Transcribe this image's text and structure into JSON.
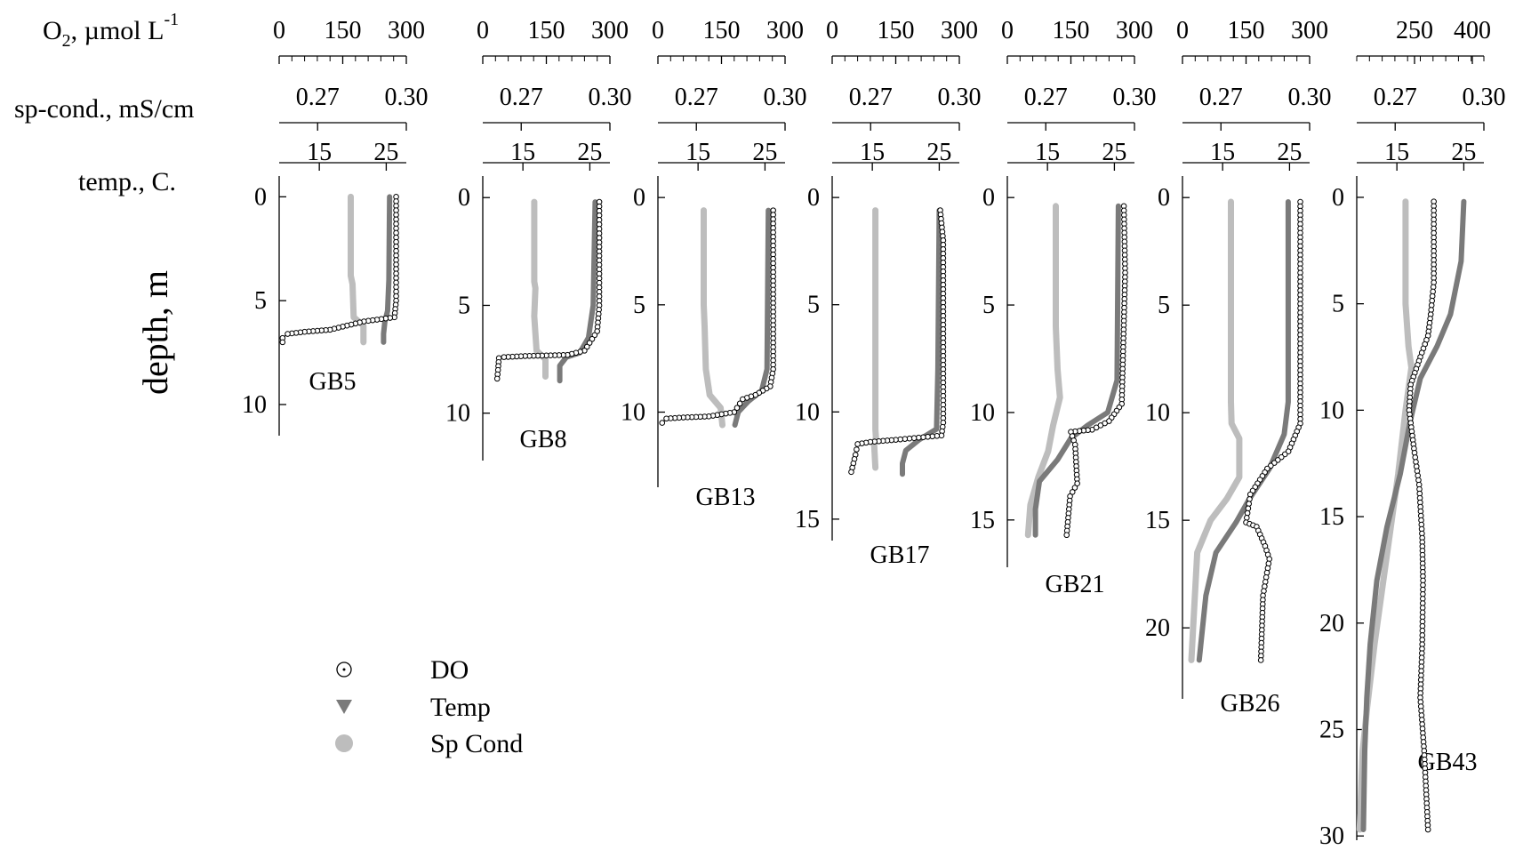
{
  "chart_data": {
    "type": "scatter",
    "row_labels": {
      "o2_prefix": "O",
      "o2_sub": "2",
      "o2_main": ", µmol L",
      "o2_sup": "-1",
      "cond": "sp-cond., mS/cm",
      "temp": "temp., C.",
      "depth": "depth, m"
    },
    "legend": [
      {
        "name": "DO",
        "marker": "open-circle",
        "color": "#000000"
      },
      {
        "name": "Temp",
        "marker": "triangle-down",
        "color": "#7a7a7a"
      },
      {
        "name": "Sp Cond",
        "marker": "filled-circle",
        "color": "#bdbdbd"
      }
    ],
    "colors": {
      "do": "#000000",
      "temp": "#7a7a7a",
      "cond": "#bdbdbd"
    },
    "panels": [
      {
        "station": "GB5",
        "o2_ticks": [
          "0",
          "150",
          "300"
        ],
        "o2_range": [
          0,
          300
        ],
        "cond_ticks": [
          "0.27",
          "0.30"
        ],
        "cond_range": [
          0.257,
          0.3
        ],
        "temp_ticks": [
          "15",
          "25"
        ],
        "temp_range": [
          9,
          28
        ],
        "depth_ticks": [
          "0",
          "5",
          "10"
        ],
        "depth_range": [
          -1,
          11.5
        ],
        "do": [
          [
            276,
            0
          ],
          [
            276,
            5
          ],
          [
            272,
            5.8
          ],
          [
            200,
            6
          ],
          [
            160,
            6.2
          ],
          [
            120,
            6.4
          ],
          [
            60,
            6.5
          ],
          [
            20,
            6.6
          ],
          [
            8,
            6.8
          ],
          [
            8,
            7.0
          ]
        ],
        "temp": [
          [
            25.5,
            0
          ],
          [
            25.4,
            4
          ],
          [
            25.2,
            5.5
          ],
          [
            24.8,
            6.0
          ],
          [
            24.6,
            6.6
          ],
          [
            24.6,
            7.0
          ]
        ],
        "cond": [
          [
            0.2812,
            0
          ],
          [
            0.2812,
            3.8
          ],
          [
            0.2818,
            4.2
          ],
          [
            0.2822,
            5.8
          ],
          [
            0.2855,
            6.2
          ],
          [
            0.2855,
            7.0
          ]
        ]
      },
      {
        "station": "GB8",
        "o2_ticks": [
          "0",
          "150",
          "300"
        ],
        "o2_range": [
          0,
          300
        ],
        "cond_ticks": [
          "0.27",
          "0.30"
        ],
        "cond_range": [
          0.257,
          0.3
        ],
        "temp_ticks": [
          "15",
          "25"
        ],
        "temp_range": [
          9,
          28
        ],
        "depth_ticks": [
          "0",
          "5",
          "10"
        ],
        "depth_range": [
          -1,
          12.2
        ],
        "do": [
          [
            275,
            0.2
          ],
          [
            275,
            5
          ],
          [
            270,
            6.2
          ],
          [
            240,
            7.1
          ],
          [
            200,
            7.3
          ],
          [
            100,
            7.35
          ],
          [
            50,
            7.4
          ],
          [
            38,
            7.45
          ],
          [
            36,
            8.0
          ],
          [
            34,
            8.4
          ]
        ],
        "temp": [
          [
            25.8,
            0.2
          ],
          [
            25.5,
            5
          ],
          [
            24.8,
            6.5
          ],
          [
            23.5,
            7.2
          ],
          [
            21.5,
            7.4
          ],
          [
            20.5,
            7.8
          ],
          [
            20.5,
            8.5
          ]
        ],
        "cond": [
          [
            0.2744,
            0.2
          ],
          [
            0.2744,
            3.9
          ],
          [
            0.2748,
            4.2
          ],
          [
            0.2744,
            5.5
          ],
          [
            0.2752,
            7.1
          ],
          [
            0.2782,
            7.5
          ],
          [
            0.2782,
            8.3
          ]
        ]
      },
      {
        "station": "GB13",
        "o2_ticks": [
          "0",
          "150",
          "300"
        ],
        "o2_range": [
          0,
          300
        ],
        "cond_ticks": [
          "0.27",
          "0.30"
        ],
        "cond_range": [
          0.257,
          0.3
        ],
        "temp_ticks": [
          "15",
          "25"
        ],
        "temp_range": [
          9,
          28
        ],
        "depth_ticks": [
          "0",
          "5",
          "10"
        ],
        "depth_range": [
          -1,
          13.5
        ],
        "do": [
          [
            272,
            0.6
          ],
          [
            272,
            8
          ],
          [
            265,
            8.8
          ],
          [
            230,
            9.2
          ],
          [
            200,
            9.4
          ],
          [
            180,
            10.0
          ],
          [
            120,
            10.2
          ],
          [
            60,
            10.25
          ],
          [
            20,
            10.3
          ],
          [
            10,
            10.5
          ]
        ],
        "temp": [
          [
            25.5,
            0.6
          ],
          [
            25.3,
            8
          ],
          [
            24.5,
            9.0
          ],
          [
            22.5,
            9.5
          ],
          [
            21.0,
            10.0
          ],
          [
            20.5,
            10.6
          ]
        ],
        "cond": [
          [
            0.2725,
            0.6
          ],
          [
            0.2725,
            5.0
          ],
          [
            0.2728,
            6.0
          ],
          [
            0.2732,
            8.0
          ],
          [
            0.2745,
            9.2
          ],
          [
            0.2782,
            9.8
          ],
          [
            0.2788,
            10.6
          ]
        ]
      },
      {
        "station": "GB17",
        "o2_ticks": [
          "0",
          "150",
          "300"
        ],
        "o2_range": [
          0,
          300
        ],
        "cond_ticks": [
          "0.27",
          "0.30"
        ],
        "cond_range": [
          0.257,
          0.3
        ],
        "temp_ticks": [
          "15",
          "25"
        ],
        "temp_range": [
          9,
          28
        ],
        "depth_ticks": [
          "0",
          "5",
          "10",
          "15"
        ],
        "depth_range": [
          -1,
          16
        ],
        "do": [
          [
            255,
            0.6
          ],
          [
            262,
            2.0
          ],
          [
            262,
            10.5
          ],
          [
            258,
            11.1
          ],
          [
            150,
            11.3
          ],
          [
            90,
            11.4
          ],
          [
            60,
            11.5
          ],
          [
            55,
            12.0
          ],
          [
            50,
            12.4
          ],
          [
            45,
            12.8
          ]
        ],
        "temp": [
          [
            25.0,
            0.6
          ],
          [
            24.8,
            8
          ],
          [
            24.6,
            10.8
          ],
          [
            22.0,
            11.3
          ],
          [
            20.0,
            11.8
          ],
          [
            19.5,
            12.4
          ],
          [
            19.5,
            12.9
          ]
        ],
        "cond": [
          [
            0.2716,
            0.6
          ],
          [
            0.2716,
            10.8
          ],
          [
            0.2718,
            11.2
          ],
          [
            0.2712,
            11.5
          ],
          [
            0.2716,
            12.6
          ]
        ]
      },
      {
        "station": "GB21",
        "o2_ticks": [
          "0",
          "150",
          "300"
        ],
        "o2_range": [
          0,
          300
        ],
        "cond_ticks": [
          "0.27",
          "0.30"
        ],
        "cond_range": [
          0.257,
          0.3
        ],
        "temp_ticks": [
          "15",
          "25"
        ],
        "temp_range": [
          9,
          28
        ],
        "depth_ticks": [
          "0",
          "5",
          "10",
          "15"
        ],
        "depth_range": [
          -1,
          17.2
        ],
        "do": [
          [
            275,
            0.4
          ],
          [
            278,
            3.5
          ],
          [
            270,
            9.6
          ],
          [
            240,
            10.4
          ],
          [
            200,
            10.8
          ],
          [
            150,
            10.9
          ],
          [
            160,
            11.5
          ],
          [
            165,
            13.3
          ],
          [
            148,
            13.9
          ],
          [
            140,
            15.7
          ]
        ],
        "temp": [
          [
            25.6,
            0.4
          ],
          [
            25.4,
            8.5
          ],
          [
            24.0,
            10.0
          ],
          [
            21.0,
            10.6
          ],
          [
            18.5,
            11.2
          ],
          [
            16.5,
            12.2
          ],
          [
            13.8,
            13.2
          ],
          [
            13.2,
            14.5
          ],
          [
            13.2,
            15.7
          ]
        ],
        "cond": [
          [
            0.2734,
            0.4
          ],
          [
            0.2734,
            6.0
          ],
          [
            0.274,
            8.0
          ],
          [
            0.2748,
            9.3
          ],
          [
            0.2725,
            10.6
          ],
          [
            0.2708,
            11.8
          ],
          [
            0.2675,
            13.0
          ],
          [
            0.2648,
            14.3
          ],
          [
            0.264,
            15.7
          ]
        ]
      },
      {
        "station": "GB26",
        "o2_ticks": [
          "0",
          "150",
          "300"
        ],
        "o2_range": [
          0,
          300
        ],
        "cond_ticks": [
          "0.27",
          "0.30"
        ],
        "cond_range": [
          0.257,
          0.3
        ],
        "temp_ticks": [
          "15",
          "25"
        ],
        "temp_range": [
          9,
          28
        ],
        "depth_ticks": [
          "0",
          "5",
          "10",
          "15",
          "20"
        ],
        "depth_range": [
          -1,
          23.3
        ],
        "do": [
          [
            278,
            0.2
          ],
          [
            278,
            10.5
          ],
          [
            250,
            11.8
          ],
          [
            200,
            12.6
          ],
          [
            160,
            13.8
          ],
          [
            150,
            15.1
          ],
          [
            175,
            15.3
          ],
          [
            195,
            16.2
          ],
          [
            205,
            16.8
          ],
          [
            190,
            18.5
          ],
          [
            185,
            21.5
          ]
        ],
        "temp": [
          [
            24.8,
            0.2
          ],
          [
            24.8,
            9.5
          ],
          [
            24.2,
            11.0
          ],
          [
            22.0,
            12.6
          ],
          [
            19.0,
            14.0
          ],
          [
            17.0,
            15.1
          ],
          [
            14.0,
            16.5
          ],
          [
            12.5,
            18.5
          ],
          [
            11.5,
            21.5
          ]
        ],
        "cond": [
          [
            0.2734,
            0.2
          ],
          [
            0.2734,
            9.5
          ],
          [
            0.2736,
            10.5
          ],
          [
            0.2762,
            11.2
          ],
          [
            0.2762,
            13.0
          ],
          [
            0.272,
            14.0
          ],
          [
            0.2665,
            15.0
          ],
          [
            0.262,
            16.5
          ],
          [
            0.26,
            21.5
          ]
        ]
      },
      {
        "station": "GB43",
        "o2_ticks": [
          "250",
          "400"
        ],
        "o2_range": [
          100,
          430
        ],
        "cond_ticks": [
          "0.27",
          "0.30"
        ],
        "cond_range": [
          0.257,
          0.3
        ],
        "temp_ticks": [
          "15",
          "25"
        ],
        "temp_range": [
          9,
          28
        ],
        "depth_ticks": [
          "0",
          "5",
          "10",
          "15",
          "20",
          "25",
          "30"
        ],
        "depth_range": [
          -1,
          30.2
        ],
        "do": [
          [
            300,
            0.2
          ],
          [
            300,
            4.0
          ],
          [
            292,
            5.5
          ],
          [
            285,
            6.5
          ],
          [
            265,
            7.5
          ],
          [
            240,
            8.8
          ],
          [
            236,
            10.0
          ],
          [
            250,
            12.0
          ],
          [
            262,
            13.5
          ],
          [
            270,
            16.0
          ],
          [
            272,
            18.0
          ],
          [
            270,
            21.0
          ],
          [
            265,
            23.5
          ],
          [
            275,
            26.0
          ],
          [
            285,
            29.7
          ]
        ],
        "temp": [
          [
            25.0,
            0.2
          ],
          [
            24.6,
            3.0
          ],
          [
            23.0,
            5.5
          ],
          [
            21.0,
            7.0
          ],
          [
            18.5,
            8.5
          ],
          [
            17.0,
            10.5
          ],
          [
            15.5,
            13.0
          ],
          [
            13.5,
            15.5
          ],
          [
            12.0,
            18.0
          ],
          [
            11.0,
            21.0
          ],
          [
            10.5,
            23.5
          ],
          [
            10.2,
            26.0
          ],
          [
            10.0,
            29.7
          ]
        ],
        "cond": [
          [
            0.2735,
            0.2
          ],
          [
            0.2735,
            5.0
          ],
          [
            0.2745,
            7.0
          ],
          [
            0.2755,
            8.0
          ],
          [
            0.2735,
            10.0
          ],
          [
            0.271,
            13.0
          ],
          [
            0.268,
            16.0
          ],
          [
            0.265,
            19.0
          ],
          [
            0.263,
            21.0
          ],
          [
            0.2605,
            24.0
          ],
          [
            0.259,
            26.0
          ],
          [
            0.258,
            29.7
          ]
        ]
      }
    ]
  }
}
